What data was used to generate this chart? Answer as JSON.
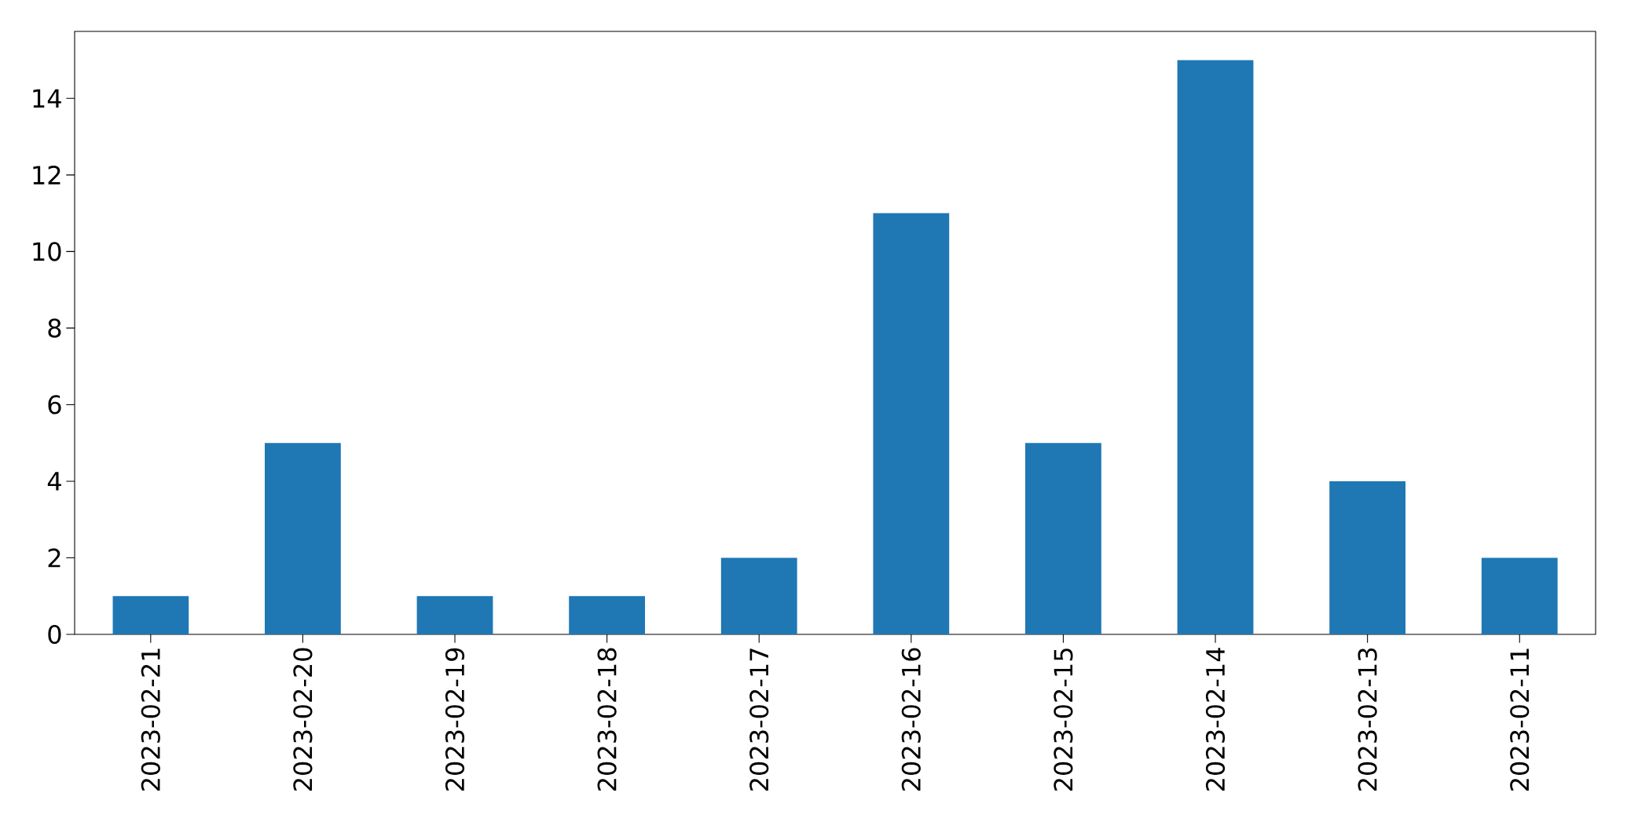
{
  "chart_data": {
    "type": "bar",
    "categories": [
      "2023-02-21",
      "2023-02-20",
      "2023-02-19",
      "2023-02-18",
      "2023-02-17",
      "2023-02-16",
      "2023-02-15",
      "2023-02-14",
      "2023-02-13",
      "2023-02-11"
    ],
    "values": [
      1,
      5,
      1,
      1,
      2,
      11,
      5,
      15,
      4,
      2
    ],
    "color": "#1f77b4",
    "ylim": [
      0,
      15.75
    ],
    "yticks": [
      0,
      2,
      4,
      6,
      8,
      10,
      12,
      14
    ],
    "grid": false
  }
}
